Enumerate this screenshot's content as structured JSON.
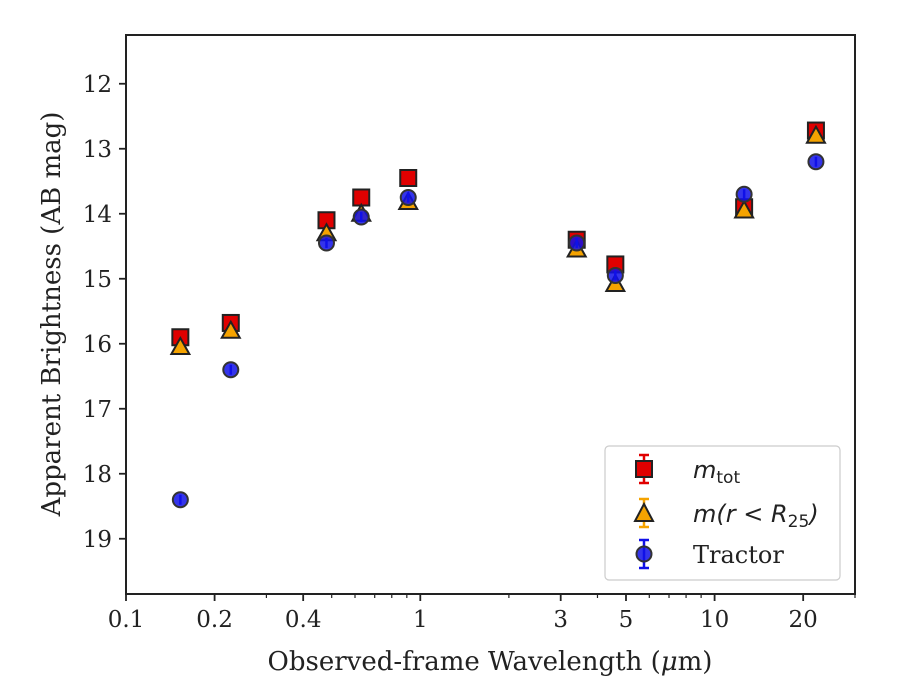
{
  "chart_data": {
    "type": "scatter",
    "xscale": "log",
    "xlim": [
      0.1,
      30
    ],
    "ylim": [
      19.85,
      11.25
    ],
    "y_inverted": true,
    "xlabel_pre": "Observed-frame Wavelength (",
    "xlabel_mu": "μ",
    "xlabel_post": "m)",
    "ylabel": "Apparent Brightness (AB mag)",
    "xticks": [
      {
        "value": 0.1,
        "label": "0.1"
      },
      {
        "value": 0.2,
        "label": "0.2"
      },
      {
        "value": 0.4,
        "label": "0.4"
      },
      {
        "value": 1,
        "label": "1"
      },
      {
        "value": 3,
        "label": "3"
      },
      {
        "value": 5,
        "label": "5"
      },
      {
        "value": 10,
        "label": "10"
      },
      {
        "value": 20,
        "label": "20"
      }
    ],
    "yticks": [
      {
        "value": 12,
        "label": "12"
      },
      {
        "value": 13,
        "label": "13"
      },
      {
        "value": 14,
        "label": "14"
      },
      {
        "value": 15,
        "label": "15"
      },
      {
        "value": 16,
        "label": "16"
      },
      {
        "value": 17,
        "label": "17"
      },
      {
        "value": 18,
        "label": "18"
      },
      {
        "value": 19,
        "label": "19"
      }
    ],
    "grid": false,
    "legend_position": "lower-right",
    "series": [
      {
        "name": "m_tot",
        "marker": "square",
        "face_color": "#e00000",
        "error_color": "#e00000",
        "x": [
          0.153,
          0.227,
          0.48,
          0.63,
          0.91,
          3.4,
          4.6,
          12.6,
          22.1
        ],
        "y": [
          15.9,
          15.68,
          14.1,
          13.75,
          13.45,
          14.4,
          14.78,
          13.9,
          12.72
        ]
      },
      {
        "name": "m(r < R25)",
        "marker": "triangle",
        "face_color": "#f5a300",
        "error_color": "#f5a300",
        "x": [
          0.153,
          0.227,
          0.48,
          0.63,
          0.91,
          3.4,
          4.6,
          12.6,
          22.1
        ],
        "y": [
          16.05,
          15.8,
          14.3,
          14.0,
          13.82,
          14.55,
          15.08,
          13.95,
          12.8
        ]
      },
      {
        "name": "Tractor",
        "marker": "circle",
        "face_color": "#1010e8",
        "error_color": "#1010e8",
        "x": [
          0.153,
          0.227,
          0.48,
          0.63,
          0.91,
          3.4,
          4.6,
          12.6,
          22.1
        ],
        "y": [
          18.4,
          16.4,
          14.45,
          14.05,
          13.75,
          14.45,
          14.95,
          13.7,
          13.2
        ]
      }
    ]
  },
  "legend": {
    "items": [
      {
        "math_base": "m",
        "math_sub": "tot",
        "text": ""
      },
      {
        "math_base": "m",
        "math_rest": "(r < R",
        "math_sub": "25",
        "math_close": ")"
      },
      {
        "text": "Tractor"
      }
    ]
  }
}
